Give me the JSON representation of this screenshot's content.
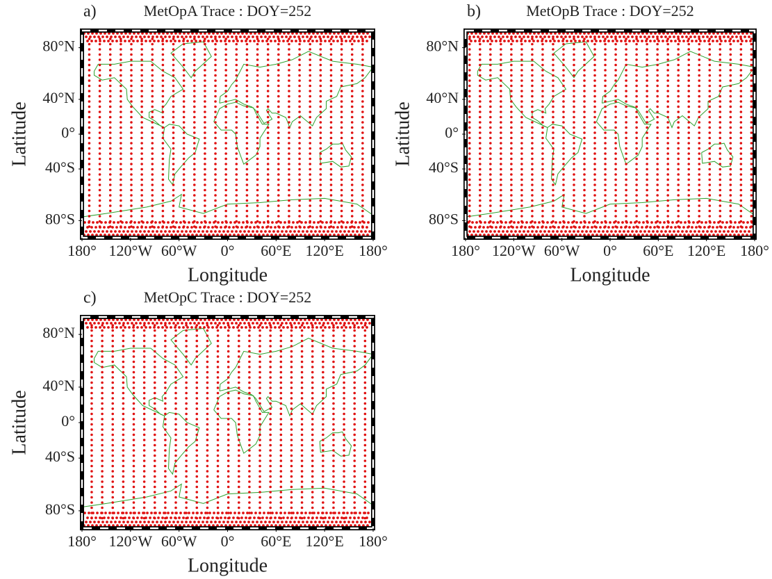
{
  "chart_data": [
    {
      "type": "scatter",
      "panel_label": "a)",
      "title": "MetOpA Trace : DOY=252",
      "xlabel": "Longitude",
      "ylabel": "Latitude",
      "projection": "miller",
      "color": "#e01010",
      "coast_color": "#2ca02c",
      "xlim": [
        -180,
        180
      ],
      "ylim": [
        -88,
        88
      ],
      "xticks": [
        {
          "value": -180,
          "label": "180°"
        },
        {
          "value": -120,
          "label": "120°W"
        },
        {
          "value": -60,
          "label": "60°W"
        },
        {
          "value": 0,
          "label": "0°"
        },
        {
          "value": 60,
          "label": "60°E"
        },
        {
          "value": 120,
          "label": "120°E"
        },
        {
          "value": 180,
          "label": "180°"
        }
      ],
      "yticks": [
        {
          "value": 80,
          "label": "80°N"
        },
        {
          "value": 40,
          "label": "40°N"
        },
        {
          "value": 0,
          "label": "0°"
        },
        {
          "value": -40,
          "label": "40°S"
        },
        {
          "value": -80,
          "label": "80°S"
        }
      ],
      "track_longitudes": [
        -171,
        -158,
        -145,
        -132,
        -119,
        -106,
        -93,
        -80,
        -67,
        -54,
        -41,
        -28,
        -15,
        -2,
        11,
        24,
        37,
        50,
        63,
        76,
        89,
        102,
        115,
        128,
        141,
        154,
        167
      ]
    },
    {
      "type": "scatter",
      "panel_label": "b)",
      "title": "MetOpB Trace : DOY=252",
      "xlabel": "Longitude",
      "ylabel": "Latitude",
      "projection": "miller",
      "color": "#e01010",
      "coast_color": "#2ca02c",
      "xlim": [
        -180,
        180
      ],
      "ylim": [
        -88,
        88
      ],
      "xticks": [
        {
          "value": -180,
          "label": "180°"
        },
        {
          "value": -120,
          "label": "120°W"
        },
        {
          "value": -60,
          "label": "60°W"
        },
        {
          "value": 0,
          "label": "0°"
        },
        {
          "value": 60,
          "label": "60°E"
        },
        {
          "value": 120,
          "label": "120°E"
        },
        {
          "value": 180,
          "label": "180°"
        }
      ],
      "yticks": [
        {
          "value": 80,
          "label": "80°N"
        },
        {
          "value": 40,
          "label": "40°N"
        },
        {
          "value": 0,
          "label": "0°"
        },
        {
          "value": -40,
          "label": "40°S"
        },
        {
          "value": -80,
          "label": "80°S"
        }
      ],
      "track_longitudes": [
        -175,
        -162,
        -149,
        -136,
        -123,
        -110,
        -97,
        -84,
        -71,
        -58,
        -45,
        -32,
        -19,
        -6,
        7,
        20,
        33,
        46,
        59,
        72,
        85,
        98,
        111,
        124,
        137,
        150,
        163,
        176
      ]
    },
    {
      "type": "scatter",
      "panel_label": "c)",
      "title": "MetOpC Trace : DOY=252",
      "xlabel": "Longitude",
      "ylabel": "Latitude",
      "projection": "miller",
      "color": "#e01010",
      "coast_color": "#2ca02c",
      "xlim": [
        -180,
        180
      ],
      "ylim": [
        -88,
        88
      ],
      "xticks": [
        {
          "value": -180,
          "label": "180°"
        },
        {
          "value": -120,
          "label": "120°W"
        },
        {
          "value": -60,
          "label": "60°W"
        },
        {
          "value": 0,
          "label": "0°"
        },
        {
          "value": 60,
          "label": "60°E"
        },
        {
          "value": 120,
          "label": "120°E"
        },
        {
          "value": 180,
          "label": "180°"
        }
      ],
      "yticks": [
        {
          "value": 80,
          "label": "80°N"
        },
        {
          "value": 40,
          "label": "40°N"
        },
        {
          "value": 0,
          "label": "0°"
        },
        {
          "value": -40,
          "label": "40°S"
        },
        {
          "value": -80,
          "label": "80°S"
        }
      ],
      "track_longitudes": [
        -168,
        -155,
        -142,
        -129,
        -116,
        -103,
        -90,
        -77,
        -64,
        -51,
        -38,
        -25,
        -12,
        1,
        14,
        27,
        40,
        53,
        66,
        79,
        92,
        105,
        118,
        131,
        144,
        157,
        170
      ]
    }
  ]
}
